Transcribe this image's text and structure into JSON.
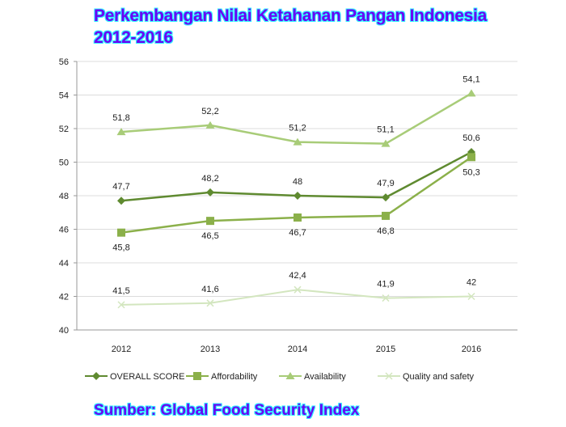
{
  "title_line1": "Perkembangan Nilai Ketahanan Pangan Indonesia",
  "title_line2": "2012-2016",
  "source": "Sumber: Global Food Security Index",
  "chart_data": {
    "type": "line",
    "categories": [
      "2012",
      "2013",
      "2014",
      "2015",
      "2016"
    ],
    "ylim": [
      40,
      56
    ],
    "yticks": [
      40,
      42,
      44,
      46,
      48,
      50,
      52,
      54,
      56
    ],
    "grid": true,
    "legend_position": "bottom",
    "series": [
      {
        "name": "OVERALL SCORE",
        "marker": "diamond",
        "color": "#5f8a30",
        "values": [
          47.7,
          48.2,
          48,
          47.9,
          50.6
        ],
        "labels": [
          "47,7",
          "48,2",
          "48",
          "47,9",
          "50,6"
        ],
        "label_pos": "above"
      },
      {
        "name": "Affordability",
        "marker": "square",
        "color": "#8bb04a",
        "values": [
          45.8,
          46.5,
          46.7,
          46.8,
          50.3
        ],
        "labels": [
          "45,8",
          "46,5",
          "46,7",
          "46,8",
          "50,3"
        ],
        "label_pos": "below"
      },
      {
        "name": "Availability",
        "marker": "triangle",
        "color": "#a8cc78",
        "values": [
          51.8,
          52.2,
          51.2,
          51.1,
          54.1
        ],
        "labels": [
          "51,8",
          "52,2",
          "51,2",
          "51,1",
          "54,1"
        ],
        "label_pos": "above"
      },
      {
        "name": "Quality and safety",
        "marker": "x",
        "color": "#d3e6bf",
        "values": [
          41.5,
          41.6,
          42.4,
          41.9,
          42
        ],
        "labels": [
          "41,5",
          "41,6",
          "42,4",
          "41,9",
          "42"
        ],
        "label_pos": "above"
      }
    ]
  }
}
